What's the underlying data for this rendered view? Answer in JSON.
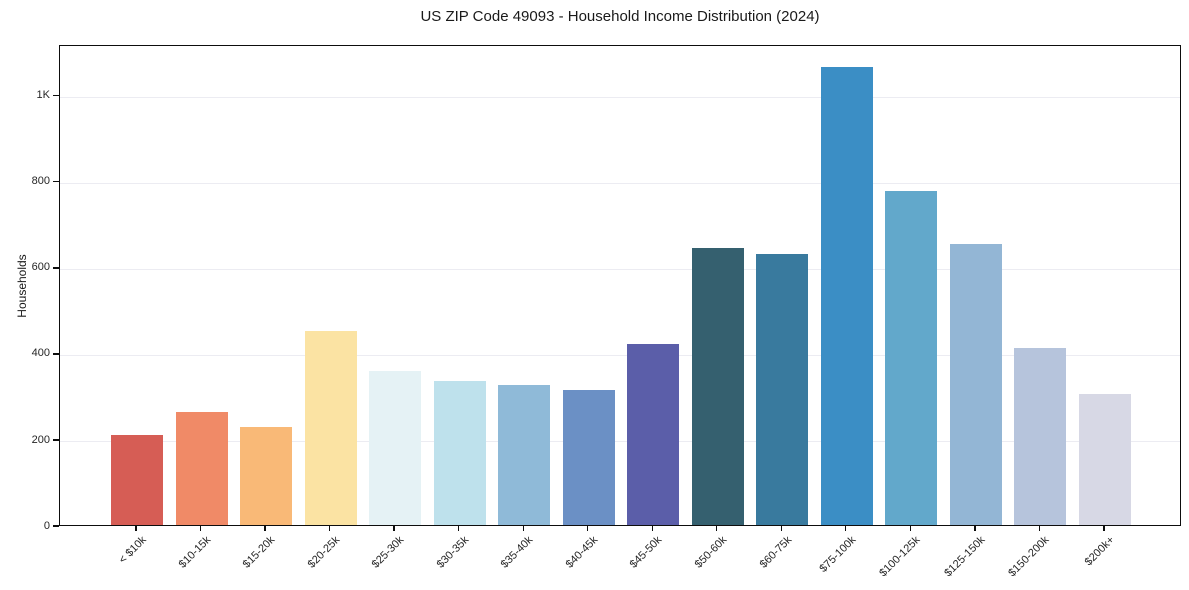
{
  "chart_data": {
    "type": "bar",
    "title": "US ZIP Code 49093 - Household Income Distribution (2024)",
    "xlabel": "",
    "ylabel": "Households",
    "categories": [
      "< $10k",
      "$10-15k",
      "$15-20k",
      "$20-25k",
      "$25-30k",
      "$30-35k",
      "$35-40k",
      "$40-45k",
      "$45-50k",
      "$50-60k",
      "$60-75k",
      "$75-100k",
      "$100-125k",
      "$125-150k",
      "$150-200k",
      "$200k+"
    ],
    "values": [
      210,
      262,
      228,
      450,
      357,
      334,
      326,
      313,
      421,
      644,
      630,
      1065,
      776,
      654,
      411,
      304
    ],
    "bar_colors": [
      "#d65d55",
      "#f08a67",
      "#f9b977",
      "#fbe3a3",
      "#e5f2f5",
      "#bee1ec",
      "#8fbad8",
      "#6b90c5",
      "#5b5ea9",
      "#35606f",
      "#397a9e",
      "#3b8ec5",
      "#62a8cb",
      "#93b6d5",
      "#b6c4dc",
      "#d7d8e5"
    ],
    "ylim": [
      0,
      1118
    ],
    "yticks": [
      {
        "value": 0,
        "label": "0"
      },
      {
        "value": 200,
        "label": "200"
      },
      {
        "value": 400,
        "label": "400"
      },
      {
        "value": 600,
        "label": "600"
      },
      {
        "value": 800,
        "label": "800"
      },
      {
        "value": 1000,
        "label": "1K"
      }
    ],
    "grid": "horizontal",
    "gridline_values": [
      200,
      400,
      600,
      800,
      1000
    ],
    "legend": "none",
    "colors": {
      "grid": "#ececf2",
      "axis": "#0d0d0d",
      "text": "#262626",
      "background": "#ffffff"
    }
  }
}
